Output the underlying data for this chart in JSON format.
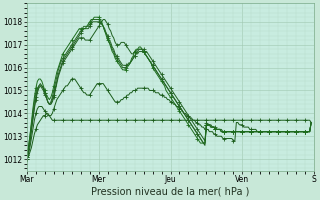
{
  "bg_color": "#c8e8d8",
  "plot_bg_color": "#c8ece0",
  "grid_major_color": "#a0c8b0",
  "grid_minor_color": "#b8dcc8",
  "xlabel": "Pression niveau de la mer( hPa )",
  "ylim": [
    1011.5,
    1018.8
  ],
  "yticks": [
    1012,
    1013,
    1014,
    1015,
    1016,
    1017,
    1018
  ],
  "xtick_labels": [
    "Mar",
    "Mer",
    "Jeu",
    "Ven",
    "S"
  ],
  "xtick_positions": [
    0,
    48,
    96,
    144,
    192
  ],
  "total_points": 193,
  "series": [
    [
      1012.0,
      1012.1,
      1012.3,
      1012.5,
      1012.8,
      1013.1,
      1013.3,
      1013.5,
      1013.6,
      1013.7,
      1013.8,
      1013.9,
      1013.9,
      1014.0,
      1014.0,
      1013.9,
      1013.8,
      1013.7,
      1013.7,
      1013.7,
      1013.7,
      1013.7,
      1013.7,
      1013.7,
      1013.7,
      1013.7,
      1013.7,
      1013.7,
      1013.7,
      1013.7,
      1013.7,
      1013.7,
      1013.7,
      1013.7,
      1013.7,
      1013.7,
      1013.7,
      1013.7,
      1013.7,
      1013.7,
      1013.7,
      1013.7,
      1013.7,
      1013.7,
      1013.7,
      1013.7,
      1013.7,
      1013.7,
      1013.7,
      1013.7,
      1013.7,
      1013.7,
      1013.7,
      1013.7,
      1013.7,
      1013.7,
      1013.7,
      1013.7,
      1013.7,
      1013.7,
      1013.7,
      1013.7,
      1013.7,
      1013.7,
      1013.7,
      1013.7,
      1013.7,
      1013.7,
      1013.7,
      1013.7,
      1013.7,
      1013.7,
      1013.7,
      1013.7,
      1013.7,
      1013.7,
      1013.7,
      1013.7,
      1013.7,
      1013.7,
      1013.7,
      1013.7,
      1013.7,
      1013.7,
      1013.7,
      1013.7,
      1013.7,
      1013.7,
      1013.7,
      1013.7,
      1013.7,
      1013.7,
      1013.7,
      1013.7,
      1013.7,
      1013.7,
      1013.7,
      1013.7,
      1013.7,
      1013.7,
      1013.7,
      1013.7,
      1013.7,
      1013.7,
      1013.7,
      1013.7,
      1013.7,
      1013.7,
      1013.7,
      1013.7,
      1013.7,
      1013.7,
      1013.7,
      1013.7,
      1013.7,
      1013.7,
      1013.7,
      1013.7,
      1013.7,
      1013.7,
      1013.7,
      1013.7,
      1013.7,
      1013.7,
      1013.7,
      1013.7,
      1013.7,
      1013.7,
      1013.7,
      1013.7,
      1013.7,
      1013.7,
      1013.7,
      1013.7,
      1013.7,
      1013.7,
      1013.7,
      1013.7,
      1013.7,
      1013.7,
      1013.7,
      1013.7,
      1013.7,
      1013.7,
      1013.7,
      1013.7,
      1013.7,
      1013.7,
      1013.7,
      1013.7,
      1013.7,
      1013.7,
      1013.7,
      1013.7,
      1013.7,
      1013.7,
      1013.7,
      1013.7,
      1013.7,
      1013.7,
      1013.7,
      1013.7,
      1013.7,
      1013.7,
      1013.7,
      1013.7,
      1013.7,
      1013.7,
      1013.7,
      1013.7,
      1013.7,
      1013.7,
      1013.7,
      1013.7,
      1013.7,
      1013.7,
      1013.7,
      1013.7,
      1013.7,
      1013.7,
      1013.7,
      1013.7,
      1013.7,
      1013.7,
      1013.7,
      1013.7,
      1013.7,
      1013.7,
      1013.7,
      1013.7,
      1013.6
    ],
    [
      1012.0,
      1012.2,
      1012.5,
      1012.9,
      1013.3,
      1013.7,
      1014.0,
      1014.2,
      1014.3,
      1014.3,
      1014.3,
      1014.2,
      1014.1,
      1014.0,
      1013.9,
      1013.9,
      1013.9,
      1014.0,
      1014.2,
      1014.4,
      1014.6,
      1014.7,
      1014.8,
      1014.9,
      1015.0,
      1015.1,
      1015.2,
      1015.2,
      1015.3,
      1015.4,
      1015.5,
      1015.5,
      1015.5,
      1015.4,
      1015.3,
      1015.2,
      1015.1,
      1015.0,
      1014.9,
      1014.9,
      1014.8,
      1014.8,
      1014.8,
      1014.9,
      1015.0,
      1015.1,
      1015.2,
      1015.3,
      1015.3,
      1015.3,
      1015.3,
      1015.3,
      1015.2,
      1015.1,
      1015.0,
      1014.9,
      1014.8,
      1014.7,
      1014.6,
      1014.5,
      1014.5,
      1014.5,
      1014.5,
      1014.6,
      1014.6,
      1014.7,
      1014.7,
      1014.8,
      1014.8,
      1014.9,
      1014.9,
      1015.0,
      1015.0,
      1015.0,
      1015.1,
      1015.1,
      1015.1,
      1015.1,
      1015.1,
      1015.1,
      1015.1,
      1015.1,
      1015.0,
      1015.0,
      1015.0,
      1015.0,
      1014.9,
      1014.9,
      1014.9,
      1014.8,
      1014.8,
      1014.8,
      1014.7,
      1014.7,
      1014.6,
      1014.6,
      1014.5,
      1014.5,
      1014.4,
      1014.4,
      1014.3,
      1014.3,
      1014.2,
      1014.2,
      1014.1,
      1014.0,
      1014.0,
      1013.9,
      1013.9,
      1013.8,
      1013.8,
      1013.7,
      1013.7,
      1013.6,
      1013.6,
      1013.5,
      1013.5,
      1013.4,
      1013.4,
      1013.3,
      1013.3,
      1013.3,
      1013.2,
      1013.2,
      1013.2,
      1013.1,
      1013.1,
      1013.0,
      1013.0,
      1013.0,
      1013.0,
      1012.9,
      1012.9,
      1012.9,
      1012.9,
      1012.9,
      1012.9,
      1012.9,
      1012.8,
      1012.8,
      1013.6,
      1013.6,
      1013.5,
      1013.5,
      1013.5,
      1013.4,
      1013.4,
      1013.4,
      1013.4,
      1013.3,
      1013.3,
      1013.3,
      1013.3,
      1013.3,
      1013.2,
      1013.2,
      1013.2,
      1013.2,
      1013.2,
      1013.2,
      1013.2,
      1013.2,
      1013.2,
      1013.2,
      1013.2,
      1013.2,
      1013.2,
      1013.2,
      1013.2,
      1013.2,
      1013.2,
      1013.2,
      1013.2,
      1013.2,
      1013.2,
      1013.2,
      1013.2,
      1013.2,
      1013.2,
      1013.2,
      1013.2,
      1013.2,
      1013.2,
      1013.2,
      1013.2,
      1013.2,
      1013.2,
      1013.2,
      1013.2,
      1013.2,
      1013.6
    ],
    [
      1012.1,
      1012.3,
      1012.7,
      1013.2,
      1013.7,
      1014.2,
      1014.6,
      1014.9,
      1015.1,
      1015.2,
      1015.2,
      1015.1,
      1014.9,
      1014.7,
      1014.5,
      1014.4,
      1014.4,
      1014.5,
      1014.7,
      1015.0,
      1015.3,
      1015.6,
      1015.8,
      1016.0,
      1016.2,
      1016.3,
      1016.4,
      1016.5,
      1016.6,
      1016.7,
      1016.8,
      1016.9,
      1017.0,
      1017.1,
      1017.2,
      1017.3,
      1017.3,
      1017.3,
      1017.3,
      1017.2,
      1017.2,
      1017.2,
      1017.2,
      1017.3,
      1017.4,
      1017.5,
      1017.6,
      1017.7,
      1017.8,
      1017.9,
      1018.0,
      1018.1,
      1018.1,
      1018.0,
      1017.9,
      1017.7,
      1017.6,
      1017.4,
      1017.3,
      1017.1,
      1017.0,
      1017.0,
      1017.0,
      1017.1,
      1017.1,
      1017.1,
      1017.0,
      1016.9,
      1016.8,
      1016.7,
      1016.6,
      1016.6,
      1016.7,
      1016.7,
      1016.8,
      1016.8,
      1016.8,
      1016.8,
      1016.8,
      1016.7,
      1016.7,
      1016.6,
      1016.5,
      1016.4,
      1016.3,
      1016.2,
      1016.1,
      1016.0,
      1015.9,
      1015.8,
      1015.7,
      1015.6,
      1015.5,
      1015.4,
      1015.3,
      1015.2,
      1015.1,
      1015.0,
      1014.9,
      1014.8,
      1014.7,
      1014.6,
      1014.5,
      1014.4,
      1014.3,
      1014.2,
      1014.1,
      1014.0,
      1013.9,
      1013.8,
      1013.7,
      1013.6,
      1013.5,
      1013.4,
      1013.3,
      1013.2,
      1013.1,
      1013.0,
      1012.9,
      1012.8,
      1013.6,
      1013.5,
      1013.5,
      1013.5,
      1013.4,
      1013.4,
      1013.4,
      1013.3,
      1013.3,
      1013.3,
      1013.3,
      1013.2,
      1013.2,
      1013.2,
      1013.2,
      1013.2,
      1013.2,
      1013.2,
      1013.2,
      1013.2,
      1013.2,
      1013.2,
      1013.2,
      1013.2,
      1013.2,
      1013.2,
      1013.2,
      1013.2,
      1013.2,
      1013.2,
      1013.2,
      1013.2,
      1013.2,
      1013.2,
      1013.2,
      1013.2,
      1013.2,
      1013.2,
      1013.2,
      1013.2,
      1013.2,
      1013.2,
      1013.2,
      1013.2,
      1013.2,
      1013.2,
      1013.2,
      1013.2,
      1013.2,
      1013.2,
      1013.2,
      1013.2,
      1013.2,
      1013.2,
      1013.2,
      1013.2,
      1013.2,
      1013.2,
      1013.2,
      1013.2,
      1013.2,
      1013.2,
      1013.2,
      1013.2,
      1013.2,
      1013.2,
      1013.2,
      1013.2,
      1013.2,
      1013.2,
      1013.6
    ],
    [
      1012.1,
      1012.4,
      1012.8,
      1013.3,
      1013.8,
      1014.3,
      1014.7,
      1015.0,
      1015.2,
      1015.3,
      1015.2,
      1015.1,
      1014.9,
      1014.7,
      1014.5,
      1014.4,
      1014.4,
      1014.6,
      1014.8,
      1015.1,
      1015.4,
      1015.7,
      1015.9,
      1016.1,
      1016.3,
      1016.4,
      1016.5,
      1016.6,
      1016.7,
      1016.8,
      1016.9,
      1017.0,
      1017.1,
      1017.2,
      1017.3,
      1017.4,
      1017.5,
      1017.6,
      1017.7,
      1017.7,
      1017.7,
      1017.7,
      1017.8,
      1017.9,
      1018.0,
      1018.0,
      1018.0,
      1018.0,
      1018.0,
      1018.0,
      1017.9,
      1017.8,
      1017.7,
      1017.5,
      1017.4,
      1017.2,
      1017.1,
      1016.9,
      1016.8,
      1016.6,
      1016.5,
      1016.4,
      1016.3,
      1016.2,
      1016.1,
      1016.1,
      1016.1,
      1016.1,
      1016.2,
      1016.2,
      1016.3,
      1016.4,
      1016.5,
      1016.6,
      1016.6,
      1016.7,
      1016.7,
      1016.7,
      1016.7,
      1016.6,
      1016.5,
      1016.4,
      1016.3,
      1016.2,
      1016.1,
      1016.0,
      1015.9,
      1015.8,
      1015.7,
      1015.6,
      1015.5,
      1015.4,
      1015.3,
      1015.2,
      1015.1,
      1015.0,
      1014.9,
      1014.8,
      1014.7,
      1014.6,
      1014.5,
      1014.4,
      1014.3,
      1014.2,
      1014.1,
      1014.0,
      1013.9,
      1013.8,
      1013.7,
      1013.6,
      1013.5,
      1013.4,
      1013.3,
      1013.2,
      1013.1,
      1013.0,
      1012.9,
      1012.8,
      1012.7,
      1012.6,
      1013.5,
      1013.5,
      1013.5,
      1013.4,
      1013.4,
      1013.4,
      1013.3,
      1013.3,
      1013.3,
      1013.3,
      1013.2,
      1013.2,
      1013.2,
      1013.2,
      1013.2,
      1013.2,
      1013.2,
      1013.2,
      1013.2,
      1013.2,
      1013.2,
      1013.2,
      1013.2,
      1013.2,
      1013.2,
      1013.2,
      1013.2,
      1013.2,
      1013.2,
      1013.2,
      1013.2,
      1013.2,
      1013.2,
      1013.2,
      1013.2,
      1013.2,
      1013.2,
      1013.2,
      1013.2,
      1013.2,
      1013.2,
      1013.2,
      1013.2,
      1013.2,
      1013.2,
      1013.2,
      1013.2,
      1013.2,
      1013.2,
      1013.2,
      1013.2,
      1013.2,
      1013.2,
      1013.2,
      1013.2,
      1013.2,
      1013.2,
      1013.2,
      1013.2,
      1013.2,
      1013.2,
      1013.2,
      1013.2,
      1013.2,
      1013.2,
      1013.2,
      1013.2,
      1013.2,
      1013.2,
      1013.2,
      1013.6
    ],
    [
      1012.2,
      1012.5,
      1013.0,
      1013.5,
      1014.0,
      1014.5,
      1014.9,
      1015.1,
      1015.2,
      1015.2,
      1015.1,
      1015.0,
      1014.8,
      1014.7,
      1014.5,
      1014.4,
      1014.5,
      1014.7,
      1015.0,
      1015.3,
      1015.6,
      1015.9,
      1016.1,
      1016.3,
      1016.4,
      1016.5,
      1016.6,
      1016.7,
      1016.8,
      1016.9,
      1017.0,
      1017.1,
      1017.2,
      1017.3,
      1017.4,
      1017.5,
      1017.6,
      1017.7,
      1017.8,
      1017.8,
      1017.8,
      1017.8,
      1017.9,
      1018.0,
      1018.1,
      1018.1,
      1018.1,
      1018.1,
      1018.1,
      1018.0,
      1017.9,
      1017.8,
      1017.6,
      1017.5,
      1017.3,
      1017.1,
      1017.0,
      1016.8,
      1016.7,
      1016.5,
      1016.4,
      1016.3,
      1016.2,
      1016.1,
      1016.0,
      1016.0,
      1016.0,
      1016.1,
      1016.1,
      1016.2,
      1016.3,
      1016.4,
      1016.5,
      1016.6,
      1016.7,
      1016.8,
      1016.8,
      1016.8,
      1016.7,
      1016.6,
      1016.5,
      1016.4,
      1016.3,
      1016.2,
      1016.1,
      1016.0,
      1015.9,
      1015.8,
      1015.7,
      1015.6,
      1015.5,
      1015.4,
      1015.3,
      1015.2,
      1015.1,
      1015.0,
      1014.9,
      1014.8,
      1014.7,
      1014.6,
      1014.5,
      1014.4,
      1014.3,
      1014.2,
      1014.1,
      1014.0,
      1013.9,
      1013.8,
      1013.7,
      1013.6,
      1013.5,
      1013.4,
      1013.3,
      1013.2,
      1013.1,
      1013.0,
      1012.9,
      1012.8,
      1012.7,
      1012.7,
      1013.5,
      1013.5,
      1013.5,
      1013.4,
      1013.4,
      1013.4,
      1013.3,
      1013.3,
      1013.3,
      1013.3,
      1013.2,
      1013.2,
      1013.2,
      1013.2,
      1013.2,
      1013.2,
      1013.2,
      1013.2,
      1013.2,
      1013.2,
      1013.2,
      1013.2,
      1013.2,
      1013.2,
      1013.2,
      1013.2,
      1013.2,
      1013.2,
      1013.2,
      1013.2,
      1013.2,
      1013.2,
      1013.2,
      1013.2,
      1013.2,
      1013.2,
      1013.2,
      1013.2,
      1013.2,
      1013.2,
      1013.2,
      1013.2,
      1013.2,
      1013.2,
      1013.2,
      1013.2,
      1013.2,
      1013.2,
      1013.2,
      1013.2,
      1013.2,
      1013.2,
      1013.2,
      1013.2,
      1013.2,
      1013.2,
      1013.2,
      1013.2,
      1013.2,
      1013.2,
      1013.2,
      1013.2,
      1013.2,
      1013.2,
      1013.2,
      1013.2,
      1013.2,
      1013.2,
      1013.2,
      1013.2,
      1013.6
    ],
    [
      1012.2,
      1012.5,
      1013.0,
      1013.6,
      1014.2,
      1014.7,
      1015.1,
      1015.4,
      1015.5,
      1015.5,
      1015.4,
      1015.2,
      1015.0,
      1014.8,
      1014.7,
      1014.6,
      1014.7,
      1014.9,
      1015.2,
      1015.5,
      1015.8,
      1016.0,
      1016.2,
      1016.4,
      1016.6,
      1016.7,
      1016.8,
      1016.9,
      1017.0,
      1017.1,
      1017.2,
      1017.3,
      1017.4,
      1017.5,
      1017.6,
      1017.7,
      1017.7,
      1017.7,
      1017.7,
      1017.7,
      1017.8,
      1017.9,
      1018.0,
      1018.1,
      1018.1,
      1018.2,
      1018.2,
      1018.2,
      1018.2,
      1018.1,
      1018.0,
      1017.8,
      1017.6,
      1017.4,
      1017.2,
      1017.1,
      1016.9,
      1016.7,
      1016.6,
      1016.4,
      1016.3,
      1016.2,
      1016.1,
      1016.0,
      1015.9,
      1015.9,
      1015.9,
      1016.0,
      1016.1,
      1016.2,
      1016.4,
      1016.5,
      1016.7,
      1016.8,
      1016.8,
      1016.9,
      1016.9,
      1016.8,
      1016.7,
      1016.6,
      1016.5,
      1016.4,
      1016.3,
      1016.2,
      1016.0,
      1015.9,
      1015.8,
      1015.7,
      1015.6,
      1015.5,
      1015.4,
      1015.3,
      1015.2,
      1015.0,
      1014.9,
      1014.8,
      1014.7,
      1014.6,
      1014.5,
      1014.4,
      1014.3,
      1014.2,
      1014.1,
      1014.0,
      1013.9,
      1013.8,
      1013.7,
      1013.6,
      1013.5,
      1013.4,
      1013.3,
      1013.2,
      1013.1,
      1013.0,
      1012.9,
      1012.8,
      1012.7,
      1012.7,
      1012.7,
      1012.7,
      1013.5,
      1013.5,
      1013.5,
      1013.4,
      1013.4,
      1013.4,
      1013.3,
      1013.3,
      1013.3,
      1013.3,
      1013.2,
      1013.2,
      1013.2,
      1013.2,
      1013.2,
      1013.2,
      1013.2,
      1013.2,
      1013.2,
      1013.2,
      1013.2,
      1013.2,
      1013.2,
      1013.2,
      1013.2,
      1013.2,
      1013.2,
      1013.2,
      1013.2,
      1013.2,
      1013.2,
      1013.2,
      1013.2,
      1013.2,
      1013.2,
      1013.2,
      1013.2,
      1013.2,
      1013.2,
      1013.2,
      1013.2,
      1013.2,
      1013.2,
      1013.2,
      1013.2,
      1013.2,
      1013.2,
      1013.2,
      1013.2,
      1013.2,
      1013.2,
      1013.2,
      1013.2,
      1013.2,
      1013.2,
      1013.2,
      1013.2,
      1013.2,
      1013.2,
      1013.2,
      1013.2,
      1013.2,
      1013.2,
      1013.2,
      1013.2,
      1013.2,
      1013.2,
      1013.2,
      1013.2,
      1013.2,
      1013.6
    ]
  ],
  "marker_interval": 6,
  "marker_size": 2.5,
  "linewidth": 0.7,
  "xlabel_fontsize": 7,
  "tick_fontsize": 5.5
}
